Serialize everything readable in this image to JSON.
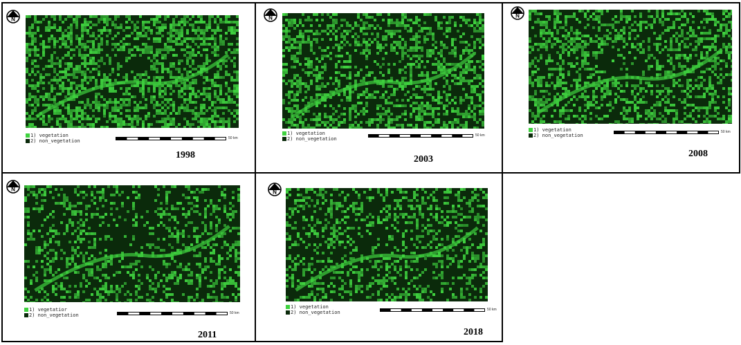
{
  "panels": [
    {
      "year": "1998",
      "legend": [
        {
          "num": "1)",
          "text": "vegetation",
          "color": "#3fd23f"
        },
        {
          "num": "2)",
          "text": "non_vegetation",
          "color": "#0b2a0b"
        }
      ],
      "scale_label": "50 km"
    },
    {
      "year": "2003",
      "legend": [
        {
          "num": "1)",
          "text": "vegetation",
          "color": "#3fd23f"
        },
        {
          "num": "2)",
          "text": "non_vegetation",
          "color": "#0b2a0b"
        }
      ],
      "scale_label": "50 km"
    },
    {
      "year": "2008",
      "legend": [
        {
          "num": "1)",
          "text": "vegetation",
          "color": "#3fd23f"
        },
        {
          "num": "2)",
          "text": "non_vegetation",
          "color": "#0b2a0b"
        }
      ],
      "scale_label": "50 km"
    },
    {
      "year": "2011",
      "legend": [
        {
          "num": "1)",
          "text": "vegetatior",
          "color": "#3fd23f"
        },
        {
          "num": "2)",
          "text": "non_vegetation",
          "color": "#0b2a0b"
        }
      ],
      "scale_label": "50 km"
    },
    {
      "year": "2018",
      "legend": [
        {
          "num": "1)",
          "text": "vegetation",
          "color": "#3fd23f"
        },
        {
          "num": "2)",
          "text": "non_vegetation",
          "color": "#0b2a0b"
        }
      ],
      "scale_label": "50 km"
    }
  ],
  "colors": {
    "vegetation": "#3fd23f",
    "non_vegetation": "#0b2a0b",
    "background": "#ffffff"
  },
  "icons": {
    "north_arrow": "north-arrow-icon"
  }
}
